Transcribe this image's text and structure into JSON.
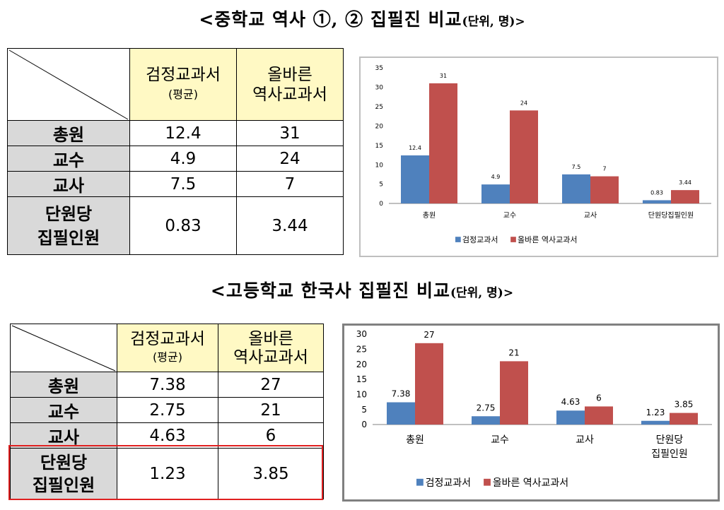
{
  "titles": {
    "middle": {
      "main": "<중학교 역사 ①, ② 집필진 비교",
      "unit": "(단위, 명)>"
    },
    "high": {
      "main": "<고등학교 한국사 집필진 비교",
      "unit": "(단위, 명)>"
    }
  },
  "table_middle": {
    "col1": {
      "line1": "검정교과서",
      "line2": "(평균)"
    },
    "col2": {
      "line1": "올바른",
      "line2": "역사교과서"
    },
    "rows": [
      {
        "label1": "총원",
        "label2": "",
        "v1": "12.4",
        "v2": "31"
      },
      {
        "label1": "교수",
        "label2": "",
        "v1": "4.9",
        "v2": "24"
      },
      {
        "label1": "교사",
        "label2": "",
        "v1": "7.5",
        "v2": "7"
      },
      {
        "label1": "단원당",
        "label2": "집필인원",
        "v1": "0.83",
        "v2": "3.44"
      }
    ]
  },
  "table_high": {
    "col1": {
      "line1": "검정교과서",
      "line2": "(평균)"
    },
    "col2": {
      "line1": "올바른",
      "line2": "역사교과서"
    },
    "rows": [
      {
        "label1": "총원",
        "label2": "",
        "v1": "7.38",
        "v2": "27"
      },
      {
        "label1": "교수",
        "label2": "",
        "v1": "2.75",
        "v2": "21"
      },
      {
        "label1": "교사",
        "label2": "",
        "v1": "4.63",
        "v2": "6"
      },
      {
        "label1": "단원당",
        "label2": "집필인원",
        "v1": "1.23",
        "v2": "3.85"
      }
    ]
  },
  "colors": {
    "blue": "#4f81bd",
    "red": "#c0504d",
    "highlight": "#e02020",
    "header_bg": "#fff9c4",
    "rowhead_bg": "#d9d9d9"
  },
  "chart_data": [
    {
      "type": "bar",
      "categories": [
        "총원",
        "교수",
        "교사",
        "단원당집필인원"
      ],
      "series": [
        {
          "name": "검정교과서",
          "values": [
            12.4,
            4.9,
            7.5,
            0.83
          ]
        },
        {
          "name": "올바른 역사교과서",
          "values": [
            31,
            24,
            7,
            3.44
          ]
        }
      ],
      "data_labels": [
        [
          "12.4",
          "4.9",
          "7.5",
          "0.83"
        ],
        [
          "31",
          "24",
          "7",
          "3.44"
        ]
      ],
      "ylim": [
        0,
        35
      ],
      "yticks": [
        0,
        5,
        10,
        15,
        20,
        25,
        30,
        35
      ],
      "legend": "bottom"
    },
    {
      "type": "bar",
      "categories": [
        "총원",
        "교수",
        "교사",
        "단원당 집필인원"
      ],
      "series": [
        {
          "name": "검정교과서",
          "values": [
            7.38,
            2.75,
            4.63,
            1.23
          ]
        },
        {
          "name": "올바른 역사교과서",
          "values": [
            27,
            21,
            6,
            3.85
          ]
        }
      ],
      "data_labels": [
        [
          "7.38",
          "2.75",
          "4.63",
          "1.23"
        ],
        [
          "27",
          "21",
          "6",
          "3.85"
        ]
      ],
      "ylim": [
        0,
        30
      ],
      "yticks": [
        0,
        5,
        10,
        15,
        20,
        25,
        30
      ],
      "legend": "bottom"
    }
  ]
}
